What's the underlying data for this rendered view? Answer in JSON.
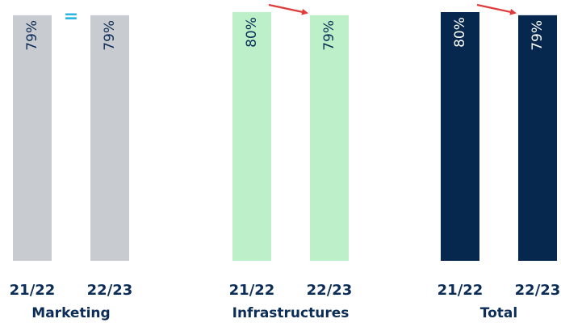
{
  "chart_data": {
    "type": "bar",
    "ylim": [
      0,
      100
    ],
    "groups": [
      {
        "name": "Marketing",
        "categories": [
          "21/22",
          "22/23"
        ],
        "values": [
          79,
          79
        ],
        "labels": [
          "79%",
          "79%"
        ],
        "color": "#c8cbcf",
        "label_color": "#0c2d57",
        "change": "equal",
        "change_symbol": "="
      },
      {
        "name": "Infrastructures",
        "categories": [
          "21/22",
          "22/23"
        ],
        "values": [
          80,
          79
        ],
        "labels": [
          "80%",
          "79%"
        ],
        "color": "#bdf0c8",
        "label_color": "#0c2d57",
        "change": "down",
        "change_symbol": ""
      },
      {
        "name": "Total",
        "categories": [
          "21/22",
          "22/23"
        ],
        "values": [
          80,
          79
        ],
        "labels": [
          "80%",
          "79%"
        ],
        "color": "#06284f",
        "label_color": "#ffffff",
        "change": "down",
        "change_symbol": ""
      }
    ],
    "arrow_color": "#e03a3a"
  }
}
